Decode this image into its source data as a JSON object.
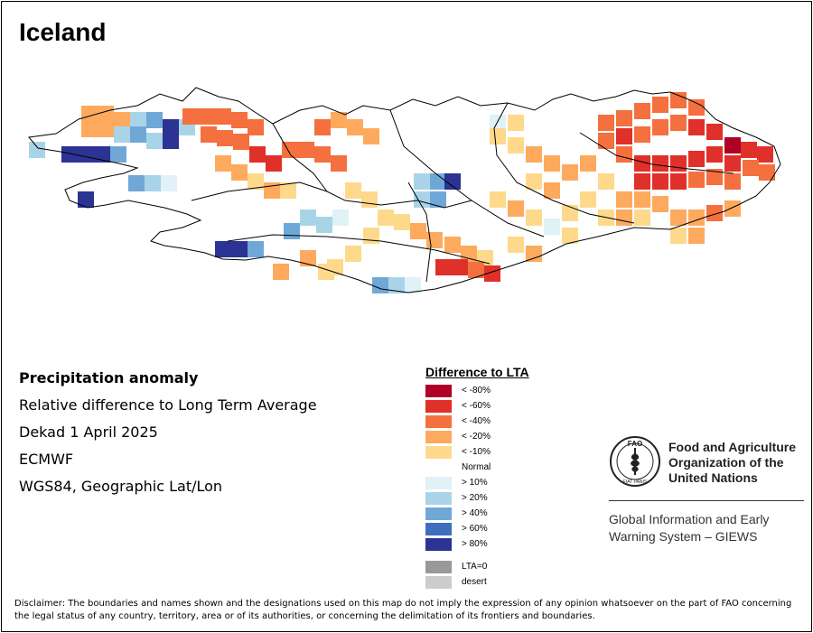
{
  "title": "Iceland",
  "info": {
    "product": "Precipitation anomaly",
    "description": "Relative difference to Long Term Average",
    "period": "Dekad 1 April 2025",
    "source": "ECMWF",
    "projection": "WGS84, Geographic Lat/Lon"
  },
  "legend": {
    "title": "Difference to LTA",
    "classes": [
      {
        "key": "lt80",
        "label": "< -80%",
        "color": "#b10026"
      },
      {
        "key": "lt60",
        "label": "< -60%",
        "color": "#e0302a"
      },
      {
        "key": "lt40",
        "label": "< -40%",
        "color": "#f4703f"
      },
      {
        "key": "lt20",
        "label": "< -20%",
        "color": "#fdaa5f"
      },
      {
        "key": "lt10",
        "label": "< -10%",
        "color": "#fed98c"
      },
      {
        "key": "normal",
        "label": "Normal",
        "color": "#ffffff"
      },
      {
        "key": "gt10",
        "label": "> 10%",
        "color": "#e0f1f8"
      },
      {
        "key": "gt20",
        "label": "> 20%",
        "color": "#a9d4e8"
      },
      {
        "key": "gt40",
        "label": "> 40%",
        "color": "#6fa8d6"
      },
      {
        "key": "gt60",
        "label": "> 60%",
        "color": "#3e6fbf"
      },
      {
        "key": "gt80",
        "label": "> 80%",
        "color": "#2b3394"
      }
    ],
    "extra": [
      {
        "key": "lta0",
        "label": "LTA=0",
        "color": "#999999"
      },
      {
        "key": "desert",
        "label": "desert",
        "color": "#cccccc"
      }
    ]
  },
  "fao": {
    "org_line1": "Food and Agriculture",
    "org_line2": "Organization of the",
    "org_line3": "United Nations",
    "sys_line1": "Global Information and Early",
    "sys_line2": "Warning System – GIEWS",
    "logo_text_top": "FAO",
    "logo_text_bottom": "FIAT PANIS"
  },
  "disclaimer": "Disclaimer: The boundaries and names shown and the designations used on this map do not imply the expression of any opinion whatsoever on the part of FAO concerning the legal status of any country, territory, area or of its authorities, or concerning the delimitation of its frontiers and boundaries.",
  "map": {
    "region": "Iceland",
    "rows": [
      "...........................................",
      "....32..........................4.4.......",
      "...34779...3.3.......................34.........",
      "..334466..3322322.........6...6..443.......",
      "9..7..8889.4333....55...66...555566.2.......",
      "..88883333.33344..55.....55..55553322........",
      "...788.532.33.5555.....555.5555.332.2..........",
      "......99.4.5..7777....................."
    ]
  }
}
